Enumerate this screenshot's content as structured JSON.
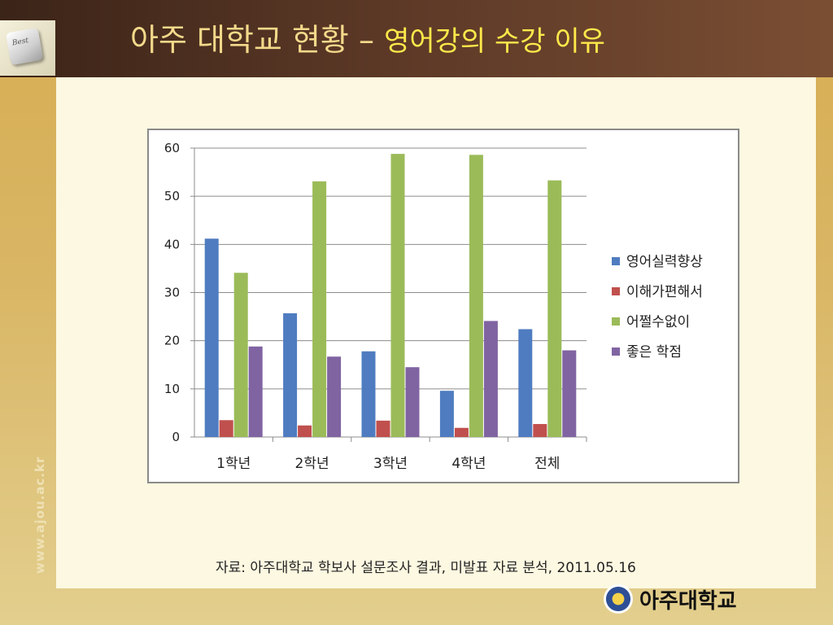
{
  "slide": {
    "title_main": "아주 대학교 현황 –",
    "title_sub": "영어강의 수강 이유",
    "logo_key_text": "Best",
    "source_note": "자료: 아주대학교 학보사 설문조사 결과, 미발표 자료 분석, 2011.05.16",
    "side_url": "www.ajou.ac.kr",
    "university_name": "아주대학교"
  },
  "colors": {
    "series": [
      "#4f7cc0",
      "#c0504d",
      "#9bbb59",
      "#8064a2"
    ],
    "grid": "#8c8c8c"
  },
  "chart_data": {
    "type": "bar",
    "categories": [
      "1학년",
      "2학년",
      "3학년",
      "4학년",
      "전체"
    ],
    "series": [
      {
        "name": "영어실력향상",
        "values": [
          41.2,
          25.7,
          17.8,
          9.6,
          22.4
        ]
      },
      {
        "name": "이해가편해서",
        "values": [
          3.5,
          2.4,
          3.4,
          1.9,
          2.7
        ]
      },
      {
        "name": "어쩔수없이",
        "values": [
          34.1,
          53.1,
          58.8,
          58.6,
          53.3
        ]
      },
      {
        "name": "좋은 학점",
        "values": [
          18.8,
          16.7,
          14.5,
          24.1,
          18.0
        ]
      }
    ],
    "yticks": [
      0,
      10,
      20,
      30,
      40,
      50,
      60
    ],
    "ylim": [
      0,
      60
    ],
    "grid": true,
    "legend_position": "right"
  }
}
